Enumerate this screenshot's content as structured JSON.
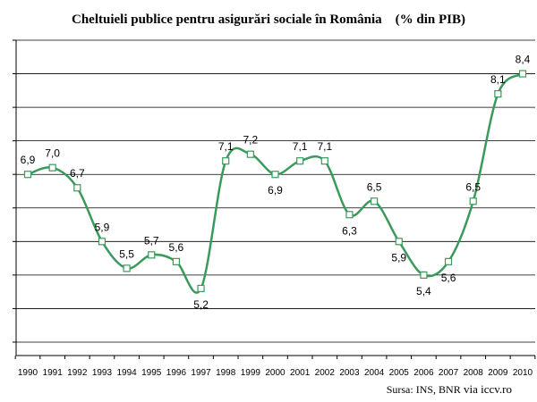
{
  "chart_data": {
    "type": "line",
    "title": "Cheltuieli publice pentru asigurări sociale în România    (% din PIB)",
    "categories": [
      "1990",
      "1991",
      "1992",
      "1993",
      "1994",
      "1995",
      "1996",
      "1997",
      "1998",
      "1999",
      "2000",
      "2001",
      "2002",
      "2003",
      "2004",
      "2005",
      "2006",
      "2007",
      "2008",
      "2009",
      "2010"
    ],
    "values": [
      6.9,
      7.0,
      6.7,
      5.9,
      5.5,
      5.7,
      5.6,
      5.2,
      7.1,
      7.2,
      6.9,
      7.1,
      7.1,
      6.3,
      6.5,
      5.9,
      5.4,
      5.6,
      6.5,
      8.1,
      8.4
    ],
    "data_labels": [
      "6,9",
      "7,0",
      "6,7",
      "5,9",
      "5,5",
      "5,7",
      "5,6",
      "5,2",
      "7,1",
      "7,2",
      "6,9",
      "7,1",
      "7,1",
      "6,3",
      "6,5",
      "5,9",
      "5,4",
      "5,6",
      "6,5",
      "8,1",
      "8,4"
    ],
    "label_positions": [
      "above",
      "above",
      "above",
      "above",
      "above",
      "above",
      "above",
      "below",
      "above",
      "above",
      "below",
      "above",
      "above",
      "below",
      "above",
      "below",
      "below",
      "below",
      "above",
      "above",
      "above"
    ],
    "ylim": [
      4.2,
      8.9
    ],
    "gridlines": [
      4.4,
      4.9,
      5.4,
      5.9,
      6.4,
      6.9,
      7.4,
      7.9,
      8.4,
      8.9
    ],
    "y_tick_labels_shown": false,
    "grid": true,
    "legend": "none",
    "line_color": "#3a9a5b",
    "marker_fill": "#ffffff",
    "marker_stroke": "#3a9a5b",
    "gridline_color": "#000000",
    "xlabel": "",
    "ylabel": ""
  },
  "source": {
    "text": "Sursa: INS, BNR",
    "via": "via iccv.ro"
  }
}
